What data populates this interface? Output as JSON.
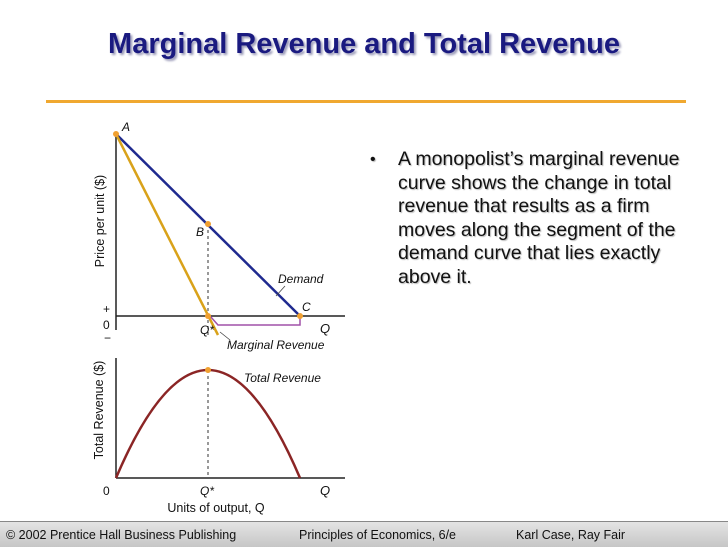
{
  "slide": {
    "title": "Marginal Revenue and Total Revenue",
    "bullet": "A monopolist’s marginal revenue curve shows the change in total revenue that results as a firm moves along the segment of the demand curve that lies exactly above it.",
    "footer": {
      "left": "© 2002 Prentice Hall Business Publishing",
      "center": "Principles of Economics, 6/e",
      "right": "Karl Case, Ray Fair"
    }
  },
  "figure": {
    "top_panel": {
      "ylabel": "Price per unit ($)",
      "plus": "+",
      "zero": "0",
      "minus": "−",
      "q_star": "Q*",
      "q": "Q",
      "point_a": "A",
      "point_b": "B",
      "point_c": "C",
      "demand_label": "Demand",
      "mr_label": "Marginal Revenue"
    },
    "bottom_panel": {
      "ylabel": "Total Revenue ($)",
      "zero": "0",
      "q_star": "Q*",
      "q": "Q",
      "xlabel": "Units of output, Q",
      "tr_label": "Total Revenue"
    },
    "colors": {
      "demand": "#1f2a8f",
      "marginal_revenue": "#d9a21a",
      "total_revenue": "#8b2525",
      "mr_below_axis": "#a050a8",
      "points": "#f0a030"
    }
  }
}
